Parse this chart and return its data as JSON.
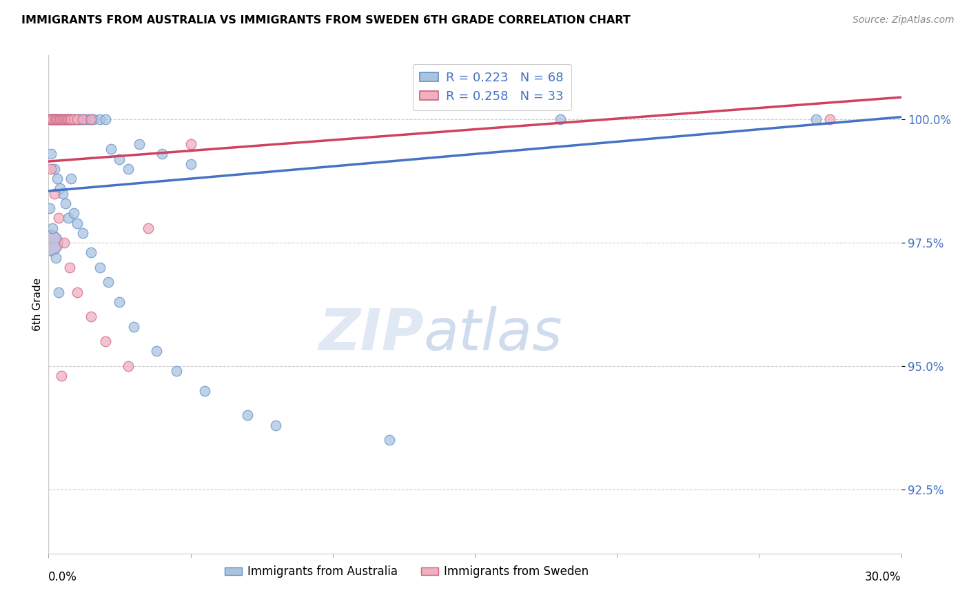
{
  "title": "IMMIGRANTS FROM AUSTRALIA VS IMMIGRANTS FROM SWEDEN 6TH GRADE CORRELATION CHART",
  "source": "Source: ZipAtlas.com",
  "ylabel": "6th Grade",
  "y_ticks": [
    92.5,
    95.0,
    97.5,
    100.0
  ],
  "y_tick_labels": [
    "92.5%",
    "95.0%",
    "97.5%",
    "100.0%"
  ],
  "xlim": [
    0.0,
    30.0
  ],
  "ylim": [
    91.2,
    101.3
  ],
  "legend1_label": "R = 0.223   N = 68",
  "legend2_label": "R = 0.258   N = 33",
  "australia_face_color": "#aac4e0",
  "australia_edge_color": "#6090c8",
  "sweden_face_color": "#f0b0c0",
  "sweden_edge_color": "#d06080",
  "trendline_australia_color": "#4472c4",
  "trendline_sweden_color": "#d04060",
  "purple_circle_color": "#9090c8",
  "aus_x": [
    0.05,
    0.08,
    0.1,
    0.12,
    0.15,
    0.18,
    0.2,
    0.22,
    0.25,
    0.28,
    0.3,
    0.35,
    0.4,
    0.45,
    0.5,
    0.55,
    0.6,
    0.65,
    0.7,
    0.75,
    0.8,
    0.85,
    0.9,
    0.95,
    1.0,
    1.05,
    1.1,
    1.2,
    1.3,
    1.4,
    1.5,
    1.6,
    1.8,
    2.0,
    2.2,
    2.5,
    2.8,
    3.2,
    4.0,
    5.0,
    0.1,
    0.2,
    0.3,
    0.4,
    0.5,
    0.6,
    0.7,
    0.8,
    0.9,
    1.0,
    1.2,
    1.5,
    1.8,
    2.1,
    2.5,
    3.0,
    3.8,
    4.5,
    5.5,
    7.0,
    8.0,
    12.0,
    18.0,
    27.0,
    0.05,
    0.15,
    0.25,
    0.35
  ],
  "aus_y": [
    100.0,
    100.0,
    100.0,
    100.0,
    100.0,
    100.0,
    100.0,
    100.0,
    100.0,
    100.0,
    100.0,
    100.0,
    100.0,
    100.0,
    100.0,
    100.0,
    100.0,
    100.0,
    100.0,
    100.0,
    100.0,
    100.0,
    100.0,
    100.0,
    100.0,
    100.0,
    100.0,
    100.0,
    100.0,
    100.0,
    100.0,
    100.0,
    100.0,
    100.0,
    99.4,
    99.2,
    99.0,
    99.5,
    99.3,
    99.1,
    99.3,
    99.0,
    98.8,
    98.6,
    98.5,
    98.3,
    98.0,
    98.8,
    98.1,
    97.9,
    97.7,
    97.3,
    97.0,
    96.7,
    96.3,
    95.8,
    95.3,
    94.9,
    94.5,
    94.0,
    93.8,
    93.5,
    100.0,
    100.0,
    98.2,
    97.8,
    97.2,
    96.5
  ],
  "swe_x": [
    0.05,
    0.1,
    0.15,
    0.2,
    0.25,
    0.3,
    0.35,
    0.4,
    0.45,
    0.5,
    0.55,
    0.6,
    0.65,
    0.7,
    0.75,
    0.8,
    0.9,
    1.0,
    1.2,
    1.5,
    0.1,
    0.2,
    0.35,
    0.55,
    0.75,
    1.0,
    1.5,
    2.0,
    2.8,
    3.5,
    5.0,
    27.5,
    0.45
  ],
  "swe_y": [
    100.0,
    100.0,
    100.0,
    100.0,
    100.0,
    100.0,
    100.0,
    100.0,
    100.0,
    100.0,
    100.0,
    100.0,
    100.0,
    100.0,
    100.0,
    100.0,
    100.0,
    100.0,
    100.0,
    100.0,
    99.0,
    98.5,
    98.0,
    97.5,
    97.0,
    96.5,
    96.0,
    95.5,
    95.0,
    97.8,
    99.5,
    100.0,
    94.8
  ]
}
